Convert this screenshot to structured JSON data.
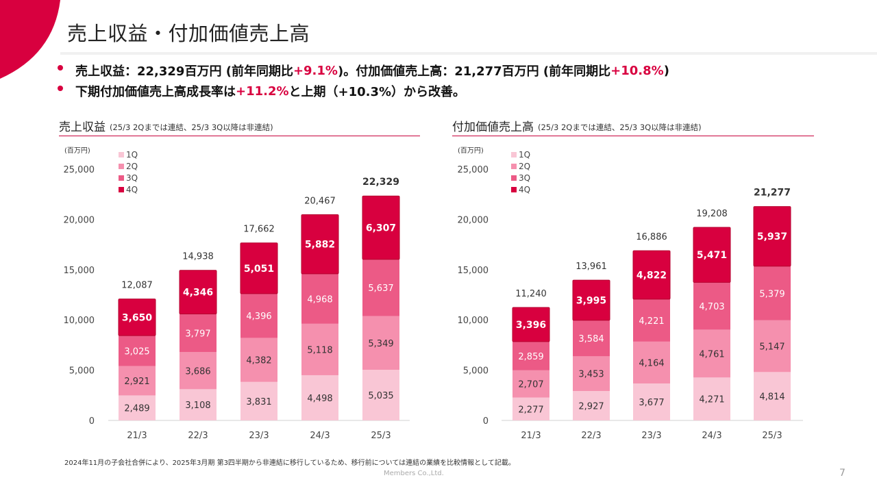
{
  "page": {
    "title": "売上収益・付加価値売上高",
    "page_number": "7",
    "company": "Members Co.,Ltd.",
    "footnote": "2024年11月の子会社合併により、2025年3月期 第3四半期から非連結に移行しているため、移行前については連結の業績を比較情報として記載。"
  },
  "bullets": [
    {
      "parts": [
        "売上収益：22,329百万円 (前年同期比",
        "+9.1%",
        ")。付加価値売上高：21,277百万円 (前年同期比",
        "+10.8%",
        ")"
      ]
    },
    {
      "parts": [
        "下期付加価値売上高成長率は",
        "+11.2%",
        "と上期（+10.3%）から改善。"
      ]
    }
  ],
  "colors": {
    "accent": "#d8003f",
    "q1": "#f9c6d5",
    "q2": "#f590ae",
    "q3": "#ec5a86",
    "q4": "#d8003f"
  },
  "chart_data": [
    {
      "type": "bar",
      "stacked": true,
      "title": "売上収益",
      "subtitle": "(25/3 2Qまでは連結、25/3 3Q以降は非連結)",
      "unit_label": "(百万円)",
      "categories": [
        "21/3",
        "22/3",
        "23/3",
        "24/3",
        "25/3"
      ],
      "series": [
        {
          "name": "1Q",
          "values": [
            2489,
            3108,
            3831,
            4498,
            5035
          ]
        },
        {
          "name": "2Q",
          "values": [
            2921,
            3686,
            4382,
            5118,
            5349
          ]
        },
        {
          "name": "3Q",
          "values": [
            3025,
            3797,
            4396,
            4968,
            5637
          ]
        },
        {
          "name": "4Q",
          "values": [
            3650,
            4346,
            5051,
            5882,
            6307
          ]
        }
      ],
      "totals": [
        12087,
        14938,
        17662,
        20467,
        22329
      ],
      "ylim": [
        0,
        25000
      ],
      "yticks": [
        0,
        5000,
        10000,
        15000,
        20000,
        25000
      ],
      "ytick_labels": [
        "0",
        "5,000",
        "10,000",
        "15,000",
        "20,000",
        "25,000"
      ],
      "legend": "top-left"
    },
    {
      "type": "bar",
      "stacked": true,
      "title": "付加価値売上高",
      "subtitle": "(25/3 2Qまでは連結、25/3 3Q以降は非連結)",
      "unit_label": "(百万円)",
      "categories": [
        "21/3",
        "22/3",
        "23/3",
        "24/3",
        "25/3"
      ],
      "series": [
        {
          "name": "1Q",
          "values": [
            2277,
            2927,
            3677,
            4271,
            4814
          ]
        },
        {
          "name": "2Q",
          "values": [
            2707,
            3453,
            4164,
            4761,
            5147
          ]
        },
        {
          "name": "3Q",
          "values": [
            2859,
            3584,
            4221,
            4703,
            5379
          ]
        },
        {
          "name": "4Q",
          "values": [
            3396,
            3995,
            4822,
            5471,
            5937
          ]
        }
      ],
      "totals": [
        11240,
        13961,
        16886,
        19208,
        21277
      ],
      "ylim": [
        0,
        25000
      ],
      "yticks": [
        0,
        5000,
        10000,
        15000,
        20000,
        25000
      ],
      "ytick_labels": [
        "0",
        "5,000",
        "10,000",
        "15,000",
        "20,000",
        "25,000"
      ],
      "legend": "top-left"
    }
  ]
}
